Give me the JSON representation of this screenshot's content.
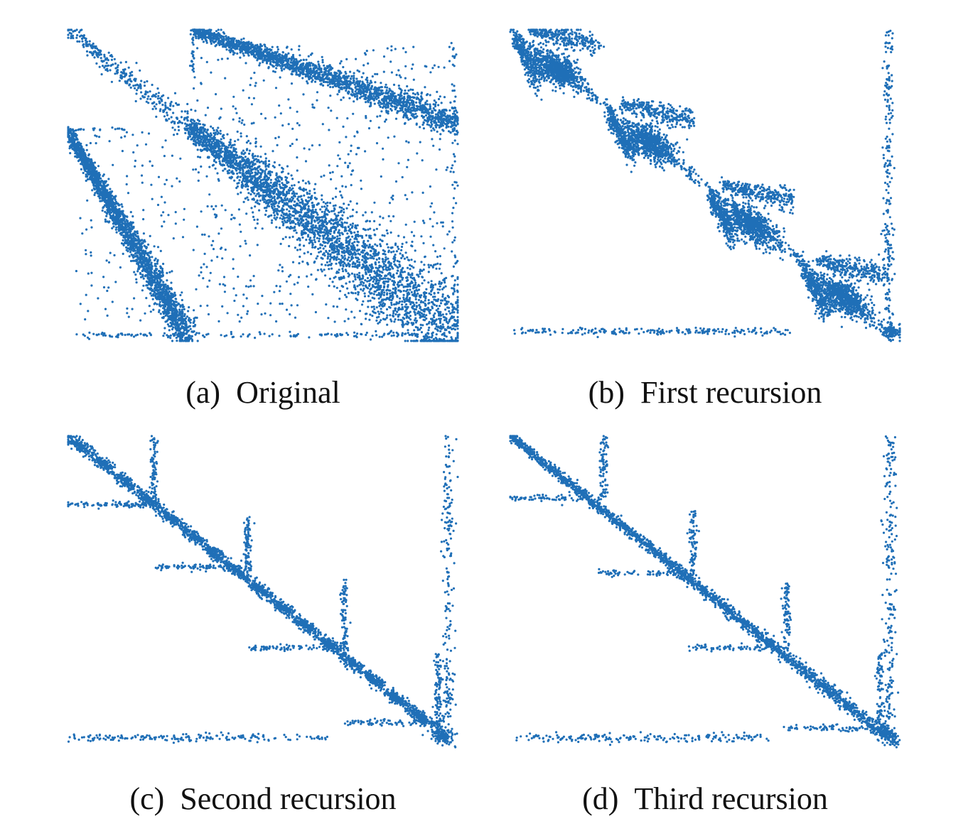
{
  "figure": {
    "point_color": "#1f6fb7",
    "panels": [
      {
        "tag": "(a)",
        "label": "Original"
      },
      {
        "tag": "(b)",
        "label": "First recursion"
      },
      {
        "tag": "(c)",
        "label": "Second recursion"
      },
      {
        "tag": "(d)",
        "label": "Third recursion"
      }
    ]
  },
  "chart_data": [
    {
      "type": "scatter",
      "title": "",
      "grid": false,
      "axes_visible": false,
      "structure": [
        {
          "kind": "band",
          "from": [
            0.0,
            0.0
          ],
          "to": [
            0.31,
            0.3
          ],
          "width": 0.012,
          "density": "medium"
        },
        {
          "kind": "band",
          "from": [
            0.31,
            0.3
          ],
          "to": [
            1.0,
            0.95
          ],
          "width": 0.04,
          "density": "high"
        },
        {
          "kind": "band",
          "from": [
            0.0,
            0.33
          ],
          "to": [
            0.31,
            1.0
          ],
          "width": 0.02,
          "density": "high"
        },
        {
          "kind": "band",
          "from": [
            0.32,
            0.0
          ],
          "to": [
            1.0,
            0.3
          ],
          "width": 0.02,
          "density": "high"
        },
        {
          "kind": "frame",
          "density": "sparse"
        },
        {
          "kind": "scatter_noise",
          "density": "sparse"
        }
      ]
    },
    {
      "type": "scatter",
      "title": "",
      "grid": false,
      "axes_visible": false,
      "structure": [
        {
          "kind": "diagonal_blocks",
          "count": 4,
          "density": "high"
        },
        {
          "kind": "right_column",
          "x": 0.98,
          "density": "sparse"
        },
        {
          "kind": "bottom_row",
          "y": 0.97,
          "density": "sparse"
        }
      ]
    },
    {
      "type": "scatter",
      "title": "",
      "grid": false,
      "axes_visible": false,
      "structure": [
        {
          "kind": "diagonal_blocks",
          "count": 16,
          "density": "high"
        },
        {
          "kind": "arrow_branches",
          "count": 4
        },
        {
          "kind": "right_column",
          "x": 0.97,
          "density": "sparse"
        },
        {
          "kind": "bottom_row",
          "y": 0.97,
          "density": "sparse"
        }
      ]
    },
    {
      "type": "scatter",
      "title": "",
      "grid": false,
      "axes_visible": false,
      "structure": [
        {
          "kind": "diagonal_line",
          "density": "high"
        },
        {
          "kind": "arrow_branches",
          "count": 4
        },
        {
          "kind": "right_column",
          "x": 0.97,
          "density": "sparse"
        },
        {
          "kind": "bottom_row",
          "y": 0.97,
          "density": "sparse"
        }
      ]
    }
  ]
}
